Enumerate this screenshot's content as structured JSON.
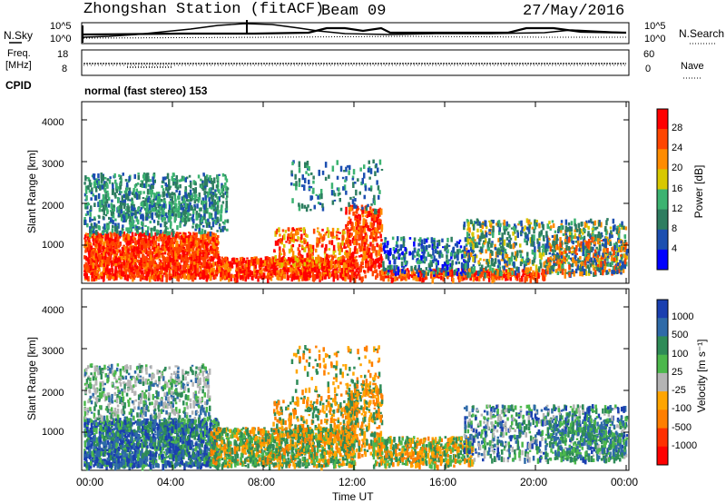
{
  "header": {
    "station": "Zhongshan Station (fitACF)",
    "beam": "Beam 09",
    "date": "27/May/2016"
  },
  "noise_panel": {
    "left_label": "N.Sky",
    "left_ticks": [
      "10^5",
      "10^0"
    ],
    "right_ticks": [
      "10^5",
      "10^0"
    ],
    "right_label": "N.Search"
  },
  "freq_panel": {
    "left_label_1": "Freq.",
    "left_label_2": "[MHz]",
    "left_ticks": [
      "18",
      "8"
    ],
    "right_ticks": [
      "60",
      "0"
    ],
    "right_label": "Nave"
  },
  "cpid": {
    "label": "CPID",
    "value": "normal (fast stereo) 153"
  },
  "chart_data": [
    {
      "type": "heatmap",
      "quantity": "Power",
      "ylabel": "Slant Range [km]",
      "xlabel": "",
      "yticks": [
        "1000",
        "2000",
        "3000",
        "4000"
      ],
      "ylim": [
        180,
        4500
      ],
      "colorbar_label": "Power [dB]",
      "colorbar_ticks": [
        "4",
        "8",
        "12",
        "16",
        "20",
        "24",
        "28"
      ],
      "colors": [
        "#0000ff",
        "#1c4fb0",
        "#2e7d60",
        "#3cb371",
        "#d8c800",
        "#ff8c00",
        "#ff4500",
        "#ff0000"
      ]
    },
    {
      "type": "heatmap",
      "quantity": "Velocity",
      "ylabel": "Slant Range [km]",
      "xlabel": "Time UT",
      "yticks": [
        "1000",
        "2000",
        "3000",
        "4000"
      ],
      "ylim": [
        180,
        4500
      ],
      "xticks": [
        "00:00",
        "04:00",
        "08:00",
        "12:00",
        "16:00",
        "20:00",
        "00:00"
      ],
      "colorbar_label": "Velocity [m s⁻¹]",
      "colorbar_ticks": [
        "1000",
        "500",
        "100",
        "25",
        "-25",
        "-100",
        "-500",
        "-1000"
      ],
      "colors": [
        "#1a3fb0",
        "#2e6aa8",
        "#2e8b57",
        "#4cb84c",
        "#b4b4b4",
        "#ffa500",
        "#ff7f00",
        "#ff3000",
        "#ff0000"
      ]
    }
  ]
}
